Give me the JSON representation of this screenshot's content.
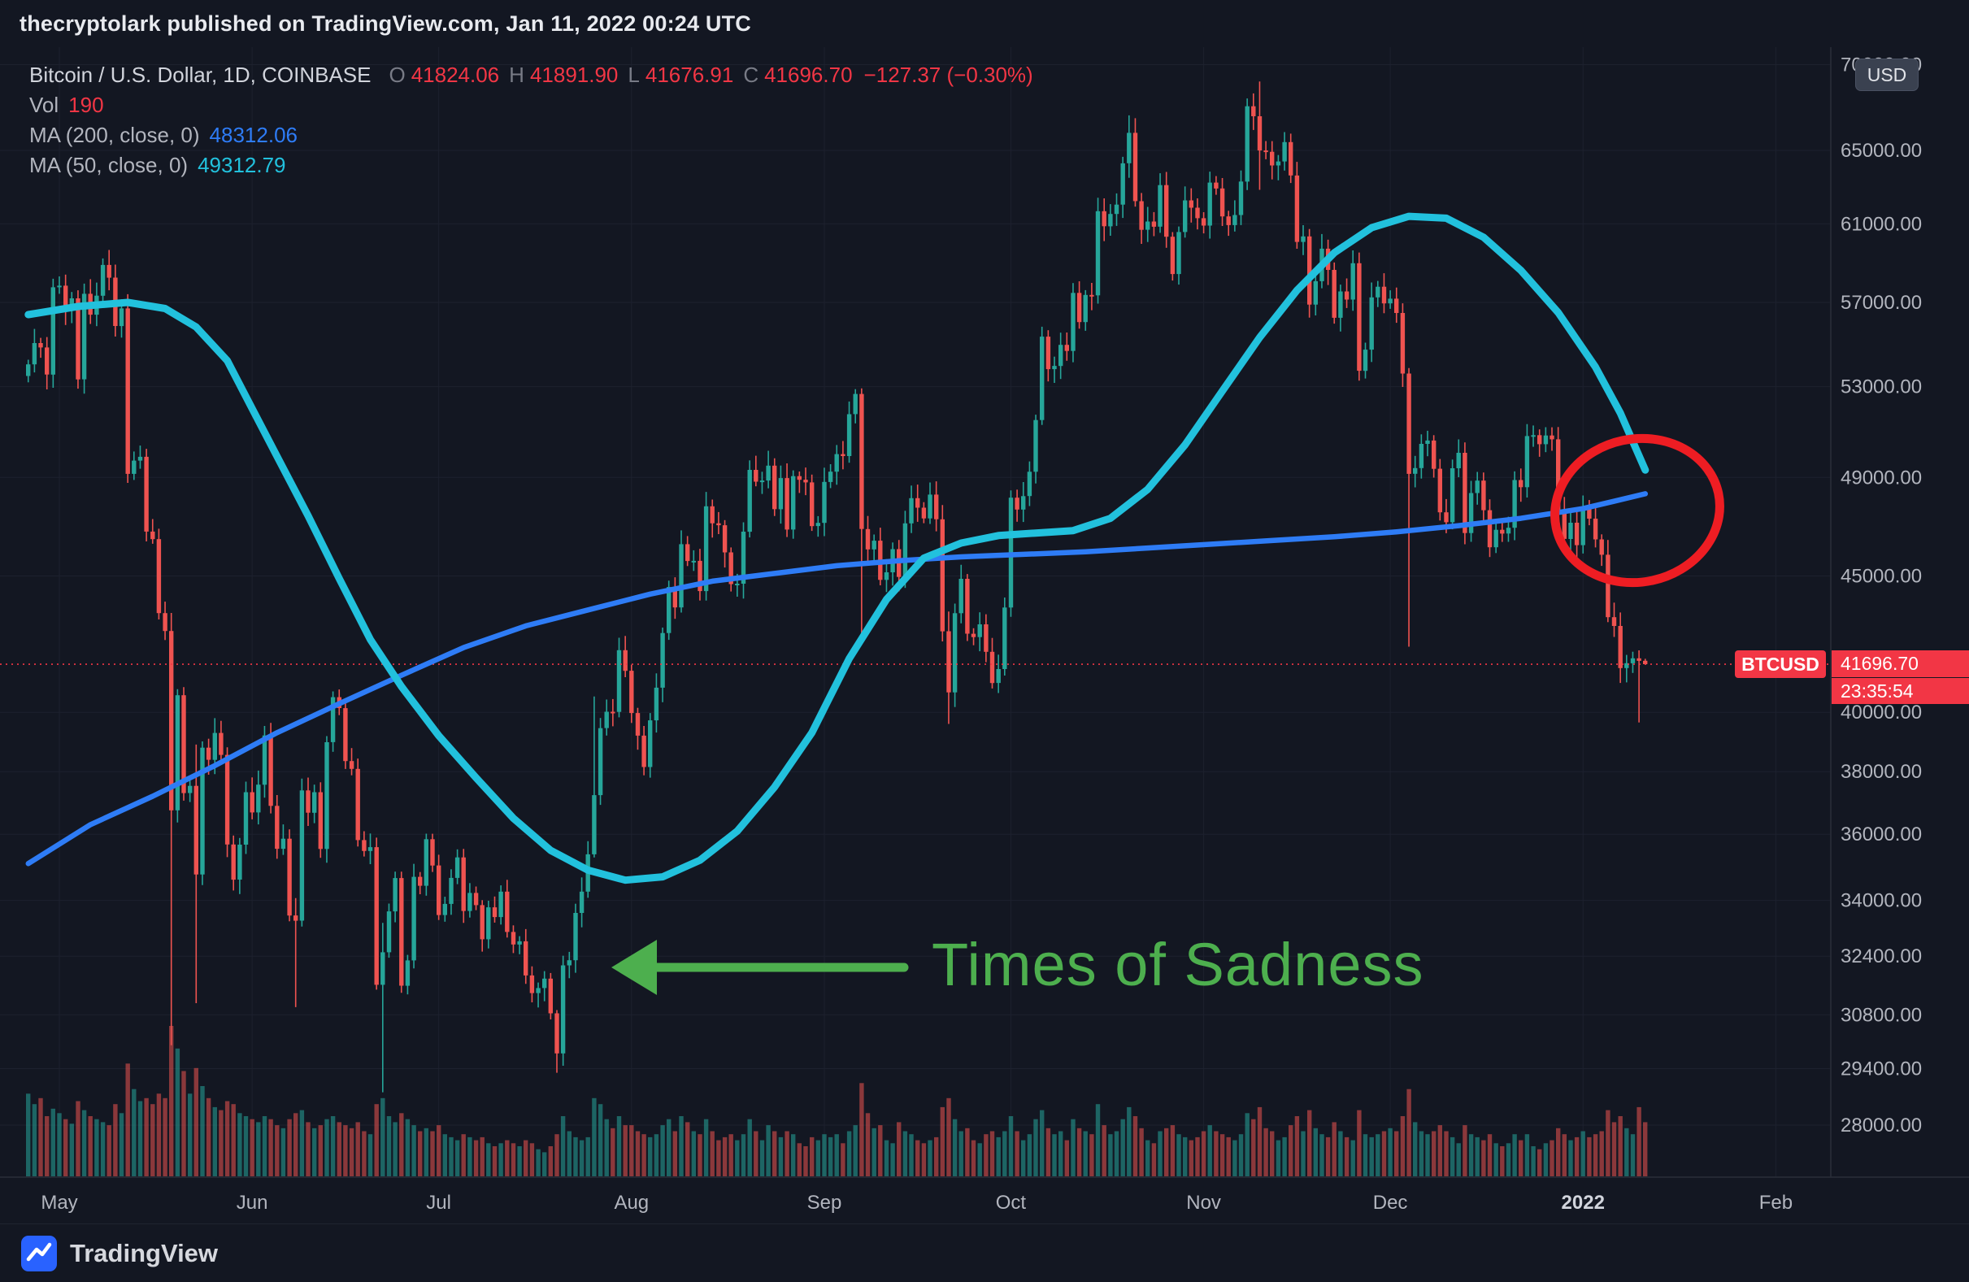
{
  "header": {
    "text": "thecryptolark published on TradingView.com, Jan 11, 2022 00:24 UTC"
  },
  "footer": {
    "brand": "TradingView"
  },
  "legend": {
    "symbol": "Bitcoin / U.S. Dollar, 1D, COINBASE",
    "open_label": "O",
    "open": "41824.06",
    "high_label": "H",
    "high": "41891.90",
    "low_label": "L",
    "low": "41676.91",
    "close_label": "C",
    "close": "41696.70",
    "change": "−127.37 (−0.30%)",
    "vol_label": "Vol",
    "vol_value": "190",
    "ma200_label": "MA (200, close, 0)",
    "ma200_value": "48312.06",
    "ma50_label": "MA (50, close, 0)",
    "ma50_value": "49312.79"
  },
  "price_scale": {
    "currency_button": "USD",
    "symbol_tag": "BTCUSD",
    "last_price_label": "41696.70",
    "countdown": "23:35:54"
  },
  "annotations": {
    "text": "Times of Sadness",
    "arrow_color": "#4daf4e",
    "circle_color": "#ee1d23"
  },
  "colors": {
    "background": "#131722",
    "grid": "#1d212e",
    "axis_line": "#2a2e39",
    "axis_text": "#b2b5be",
    "axis_text_strong": "#d1d4dc",
    "up": "#26a69a",
    "down": "#ef5350",
    "vol_up": "rgba(38,166,154,0.55)",
    "vol_down": "rgba(239,83,80,0.55)",
    "ma50": "#22c1dd",
    "ma200": "#2e7cf6",
    "price_line": "#f23645"
  },
  "chart_data": {
    "type": "candlestick",
    "symbol": "BTCUSD",
    "exchange": "COINBASE",
    "interval": "1D",
    "scale": "log",
    "start_date": "2021-04-26",
    "last_price": 41696.7,
    "y_ticks": [
      {
        "label": "70000.00",
        "value": 70000
      },
      {
        "label": "65000.00",
        "value": 65000
      },
      {
        "label": "61000.00",
        "value": 61000
      },
      {
        "label": "57000.00",
        "value": 57000
      },
      {
        "label": "53000.00",
        "value": 53000
      },
      {
        "label": "49000.00",
        "value": 49000
      },
      {
        "label": "45000.00",
        "value": 45000
      },
      {
        "label": "40000.00",
        "value": 40000
      },
      {
        "label": "38000.00",
        "value": 38000
      },
      {
        "label": "36000.00",
        "value": 36000
      },
      {
        "label": "34000.00",
        "value": 34000
      },
      {
        "label": "32400.00",
        "value": 32400
      },
      {
        "label": "30800.00",
        "value": 30800
      },
      {
        "label": "29400.00",
        "value": 29400
      },
      {
        "label": "28000.00",
        "value": 28000
      }
    ],
    "x_labels": [
      {
        "label": "May",
        "i": 5
      },
      {
        "label": "Jun",
        "i": 36
      },
      {
        "label": "Jul",
        "i": 66
      },
      {
        "label": "Aug",
        "i": 97
      },
      {
        "label": "Sep",
        "i": 128
      },
      {
        "label": "Oct",
        "i": 158
      },
      {
        "label": "Nov",
        "i": 189
      },
      {
        "label": "Dec",
        "i": 219
      },
      {
        "label": "2022",
        "i": 250,
        "strong": true
      },
      {
        "label": "Feb",
        "i": 281
      }
    ],
    "closes": [
      54030,
      55033,
      54824,
      53555,
      57750,
      57828,
      56631,
      57200,
      53333,
      57424,
      56396,
      57332,
      58877,
      58232,
      55847,
      56704,
      49150,
      49716,
      49880,
      46760,
      46456,
      43580,
      42912,
      36753,
      40596,
      37304,
      37536,
      34770,
      38796,
      38392,
      39294,
      38556,
      35684,
      34616,
      35678,
      37332,
      36684,
      37575,
      39208,
      36894,
      35551,
      35862,
      33560,
      33408,
      37388,
      36675,
      37332,
      35546,
      38980,
      40525,
      40144,
      38349,
      38092,
      35819,
      35483,
      35600,
      31608,
      32509,
      33678,
      34663,
      31584,
      32283,
      34700,
      34434,
      35847,
      35041,
      33572,
      33897,
      34668,
      35287,
      33690,
      34220,
      33862,
      32877,
      33798,
      33515,
      34259,
      33086,
      32729,
      32820,
      31866,
      31383,
      31520,
      31778,
      30839,
      29790,
      32144,
      32287,
      33634,
      34258,
      35381,
      37237,
      39457,
      40019,
      40016,
      42206,
      41461,
      39974,
      39201,
      38152,
      39723,
      40862,
      42836,
      44572,
      43794,
      46253,
      45584,
      45593,
      44417,
      47793,
      47096,
      47018,
      45927,
      44686,
      44702,
      46756,
      49322,
      48821,
      48869,
      49500,
      47674,
      48973,
      46843,
      49056,
      48902,
      48790,
      46982,
      47112,
      48810,
      49246,
      49999,
      49915,
      51753,
      52663,
      46863,
      46048,
      46395,
      44850,
      45144,
      46057,
      44963,
      47092,
      48130,
      47737,
      47295,
      48278,
      47260,
      42901,
      40693,
      43575,
      44889,
      42810,
      42686,
      43160,
      42147,
      41026,
      41522,
      43791,
      48150,
      47660,
      48215,
      49240,
      51489,
      55337,
      53802,
      53955,
      54949,
      54659,
      57471,
      56038,
      57367,
      57347,
      61672,
      60875,
      61528,
      62026,
      64280,
      65992,
      62210,
      60692,
      61125,
      60852,
      63078,
      60328,
      58413,
      60575,
      62253,
      61859,
      61300,
      60911,
      63219,
      62896,
      61395,
      60937,
      61470,
      63273,
      67528,
      66947,
      64995,
      64921,
      64158,
      64380,
      65466,
      63606,
      60058,
      60344,
      56891,
      58052,
      59707,
      58622,
      56247,
      57541,
      57138,
      58960,
      53726,
      54721,
      57248,
      57776,
      56950,
      57184,
      56482,
      53601,
      49152,
      49396,
      50441,
      50588,
      49368,
      47545,
      47140,
      49389,
      50053,
      46702,
      48343,
      48864,
      47632,
      46131,
      46834,
      46681,
      46914,
      48889,
      48588,
      50784,
      50822,
      50429,
      50809,
      50640,
      47588,
      46464,
      47120,
      46216,
      47722,
      47286,
      46446,
      45832,
      43425,
      43097,
      41557,
      41733,
      41911,
      41821,
      41696.7
    ],
    "volumes": [
      55,
      48,
      52,
      40,
      45,
      42,
      38,
      35,
      50,
      44,
      40,
      38,
      36,
      34,
      48,
      42,
      75,
      58,
      50,
      52,
      48,
      55,
      52,
      100,
      85,
      70,
      55,
      72,
      60,
      52,
      46,
      44,
      50,
      48,
      42,
      40,
      38,
      36,
      40,
      38,
      34,
      32,
      38,
      42,
      44,
      36,
      32,
      34,
      38,
      40,
      36,
      34,
      32,
      36,
      30,
      28,
      48,
      52,
      40,
      36,
      42,
      38,
      34,
      30,
      32,
      30,
      34,
      28,
      26,
      24,
      28,
      26,
      24,
      26,
      22,
      20,
      22,
      24,
      22,
      20,
      24,
      22,
      18,
      16,
      20,
      28,
      40,
      30,
      26,
      24,
      26,
      52,
      48,
      38,
      32,
      40,
      34,
      34,
      30,
      28,
      26,
      28,
      34,
      38,
      30,
      40,
      36,
      30,
      28,
      38,
      30,
      24,
      26,
      28,
      24,
      28,
      38,
      30,
      24,
      34,
      30,
      26,
      30,
      28,
      22,
      20,
      26,
      24,
      28,
      26,
      28,
      22,
      30,
      34,
      62,
      42,
      32,
      34,
      24,
      22,
      36,
      30,
      28,
      24,
      22,
      24,
      26,
      46,
      52,
      38,
      30,
      32,
      24,
      22,
      28,
      30,
      26,
      30,
      40,
      30,
      24,
      28,
      38,
      44,
      32,
      28,
      30,
      24,
      38,
      32,
      30,
      28,
      48,
      34,
      28,
      30,
      38,
      46,
      40,
      32,
      24,
      22,
      30,
      32,
      34,
      28,
      26,
      24,
      26,
      30,
      34,
      30,
      28,
      26,
      24,
      28,
      42,
      38,
      46,
      32,
      30,
      24,
      26,
      34,
      40,
      30,
      44,
      32,
      28,
      26,
      36,
      30,
      26,
      24,
      44,
      28,
      26,
      28,
      30,
      32,
      30,
      40,
      58,
      36,
      30,
      28,
      30,
      34,
      30,
      26,
      22,
      34,
      28,
      26,
      24,
      28,
      22,
      20,
      22,
      28,
      24,
      28,
      20,
      18,
      22,
      24,
      32,
      28,
      24,
      26,
      30,
      26,
      28,
      30,
      44,
      36,
      40,
      32,
      28,
      46,
      36
    ],
    "wick_overrides": {
      "23": [
        43584,
        30000
      ],
      "27": [
        38900,
        31111
      ],
      "43": [
        34069,
        31004
      ],
      "57": [
        33348,
        28805
      ],
      "85": [
        30925,
        29296
      ],
      "91": [
        40550,
        35284
      ],
      "134": [
        52920,
        42843
      ],
      "148": [
        43639,
        39600
      ],
      "177": [
        67000,
        63481
      ],
      "198": [
        68990,
        62822
      ],
      "222": [
        53859,
        42333
      ],
      "259": [
        42199,
        39650
      ],
      "260": [
        41891.9,
        41676.91
      ]
    },
    "ma50": [
      [
        0,
        56400
      ],
      [
        8,
        56800
      ],
      [
        16,
        57000
      ],
      [
        22,
        56700
      ],
      [
        27,
        55800
      ],
      [
        32,
        54200
      ],
      [
        36,
        52000
      ],
      [
        40,
        49900
      ],
      [
        45,
        47400
      ],
      [
        50,
        44900
      ],
      [
        55,
        42600
      ],
      [
        60,
        40900
      ],
      [
        66,
        39200
      ],
      [
        72,
        37800
      ],
      [
        78,
        36500
      ],
      [
        84,
        35500
      ],
      [
        90,
        34900
      ],
      [
        96,
        34600
      ],
      [
        102,
        34700
      ],
      [
        108,
        35200
      ],
      [
        114,
        36100
      ],
      [
        120,
        37500
      ],
      [
        126,
        39300
      ],
      [
        132,
        41900
      ],
      [
        138,
        44100
      ],
      [
        144,
        45700
      ],
      [
        150,
        46300
      ],
      [
        156,
        46600
      ],
      [
        162,
        46700
      ],
      [
        168,
        46800
      ],
      [
        174,
        47300
      ],
      [
        180,
        48500
      ],
      [
        186,
        50400
      ],
      [
        192,
        52800
      ],
      [
        198,
        55300
      ],
      [
        204,
        57600
      ],
      [
        210,
        59500
      ],
      [
        216,
        60800
      ],
      [
        222,
        61400
      ],
      [
        228,
        61300
      ],
      [
        234,
        60300
      ],
      [
        240,
        58600
      ],
      [
        246,
        56500
      ],
      [
        252,
        53900
      ],
      [
        256,
        51800
      ],
      [
        260,
        49313
      ]
    ],
    "ma200": [
      [
        0,
        35100
      ],
      [
        10,
        36300
      ],
      [
        20,
        37200
      ],
      [
        30,
        38200
      ],
      [
        40,
        39300
      ],
      [
        50,
        40300
      ],
      [
        60,
        41300
      ],
      [
        70,
        42300
      ],
      [
        80,
        43100
      ],
      [
        90,
        43700
      ],
      [
        100,
        44300
      ],
      [
        110,
        44800
      ],
      [
        120,
        45100
      ],
      [
        130,
        45400
      ],
      [
        140,
        45600
      ],
      [
        150,
        45750
      ],
      [
        160,
        45850
      ],
      [
        170,
        45950
      ],
      [
        180,
        46100
      ],
      [
        190,
        46250
      ],
      [
        200,
        46400
      ],
      [
        210,
        46550
      ],
      [
        220,
        46750
      ],
      [
        230,
        47000
      ],
      [
        240,
        47300
      ],
      [
        250,
        47700
      ],
      [
        255,
        48000
      ],
      [
        260,
        48312
      ]
    ]
  }
}
